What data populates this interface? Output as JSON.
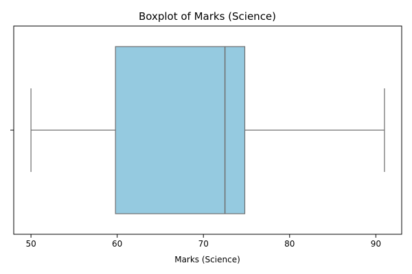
{
  "chart_data": {
    "type": "boxplot",
    "title": "Boxplot of Marks (Science)",
    "xlabel": "Marks (Science)",
    "ylabel": "",
    "orientation": "horizontal",
    "xlim": [
      48.0,
      93.0
    ],
    "xticks": [
      50,
      60,
      70,
      80,
      90
    ],
    "xtick_labels": [
      "50",
      "60",
      "70",
      "80",
      "90"
    ],
    "y_category_ticks": [
      ""
    ],
    "grid": false,
    "series": [
      {
        "min": 50.0,
        "q1": 59.8,
        "median": 72.5,
        "q3": 74.8,
        "max": 91.0
      }
    ],
    "colors": {
      "box_fill": "#95CAE0",
      "box_edge": "#6E6E6E",
      "axis": "#000000"
    }
  }
}
